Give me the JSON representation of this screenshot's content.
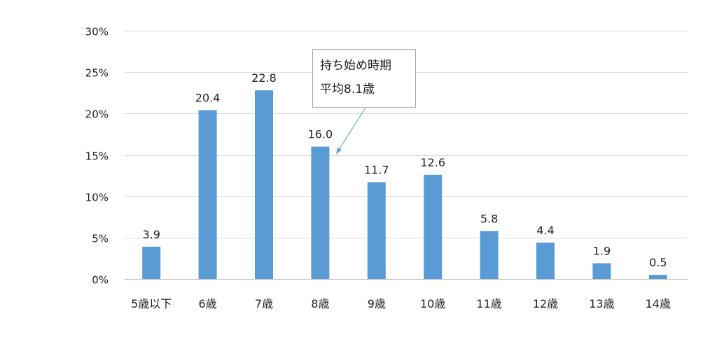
{
  "chart_data": {
    "type": "bar",
    "categories": [
      "5歳以下",
      "6歳",
      "7歳",
      "8歳",
      "9歳",
      "10歳",
      "11歳",
      "12歳",
      "13歳",
      "14歳"
    ],
    "values": [
      3.9,
      20.4,
      22.8,
      16.0,
      11.7,
      12.6,
      5.8,
      4.4,
      1.9,
      0.5
    ],
    "value_labels": [
      "3.9",
      "20.4",
      "22.8",
      "16.0",
      "11.7",
      "12.6",
      "5.8",
      "4.4",
      "1.9",
      "0.5"
    ],
    "yticks": [
      0,
      5,
      10,
      15,
      20,
      25,
      30
    ],
    "ytick_labels": [
      "0%",
      "5%",
      "10%",
      "15%",
      "20%",
      "25%",
      "30%"
    ],
    "ylim": [
      0,
      30
    ],
    "grid": true,
    "legend": "none",
    "bar_color": "#5b9bd5",
    "annotation": {
      "line1": "持ち始め時期",
      "line2": "平均8.1歳",
      "arrow_color": "#5b9bd5"
    }
  }
}
